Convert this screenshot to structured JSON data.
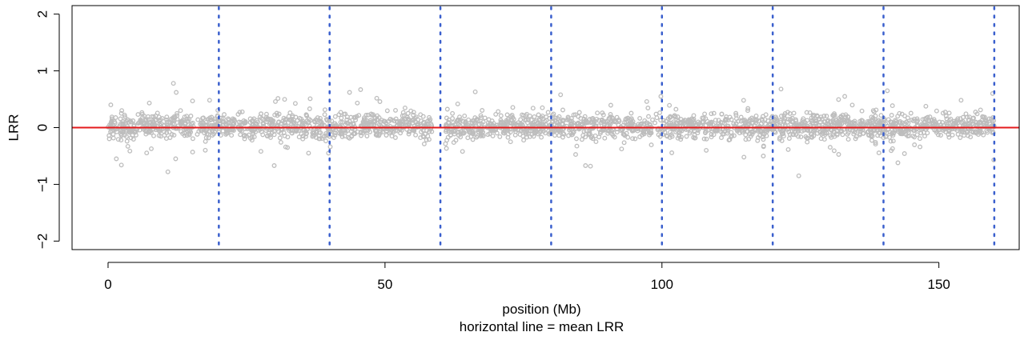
{
  "chart_data": {
    "type": "scatter",
    "title": "",
    "xlabel": "position (Mb)",
    "subtitle": "horizontal line = mean LRR",
    "ylabel": "LRR",
    "xlim": [
      -6.5,
      164.5
    ],
    "ylim": [
      -2.15,
      2.15
    ],
    "x_ticks": [
      0,
      50,
      100,
      150
    ],
    "x_tick_labels": [
      "0",
      "50",
      "100",
      "150"
    ],
    "y_ticks": [
      -2,
      -1,
      0,
      1,
      2
    ],
    "y_tick_labels": [
      "−2",
      "−1",
      "0",
      "1",
      "2"
    ],
    "grid": false,
    "mean_line": {
      "y": 0.0,
      "color": "#e41a1c"
    },
    "vertical_lines": {
      "x": [
        20,
        40,
        60,
        80,
        100,
        120,
        140,
        160
      ],
      "color": "#3a5fcd",
      "style": "dotted"
    },
    "point_color": "#bdbdbd",
    "series": [
      {
        "x_range": [
          0,
          160
        ],
        "gaps": [
          [
            58.5,
            60.8
          ]
        ],
        "typical_y_range": [
          -0.3,
          0.35
        ],
        "outliers": [
          {
            "x": 11.8,
            "y": 0.78
          },
          {
            "x": 12.3,
            "y": 0.62
          },
          {
            "x": 1.5,
            "y": -0.55
          },
          {
            "x": 2.4,
            "y": -0.66
          },
          {
            "x": 10.8,
            "y": -0.78
          },
          {
            "x": 12.2,
            "y": -0.55
          },
          {
            "x": 30.0,
            "y": -0.67
          },
          {
            "x": 43.6,
            "y": 0.62
          },
          {
            "x": 45.6,
            "y": 0.67
          },
          {
            "x": 39.8,
            "y": -0.45
          },
          {
            "x": 66.3,
            "y": 0.63
          },
          {
            "x": 81.7,
            "y": 0.58
          },
          {
            "x": 86.2,
            "y": -0.67
          },
          {
            "x": 87.1,
            "y": -0.68
          },
          {
            "x": 99.8,
            "y": 0.55
          },
          {
            "x": 121.5,
            "y": 0.68
          },
          {
            "x": 124.7,
            "y": -0.85
          },
          {
            "x": 114.8,
            "y": -0.52
          },
          {
            "x": 140.7,
            "y": 0.65
          },
          {
            "x": 142.6,
            "y": -0.62
          },
          {
            "x": 159.7,
            "y": 0.6
          },
          {
            "x": 159.9,
            "y": -0.57
          },
          {
            "x": 118.3,
            "y": -0.5
          },
          {
            "x": 64.0,
            "y": -0.42
          },
          {
            "x": 36.2,
            "y": -0.45
          },
          {
            "x": 108.0,
            "y": -0.4
          },
          {
            "x": 133.0,
            "y": 0.55
          }
        ]
      }
    ]
  }
}
